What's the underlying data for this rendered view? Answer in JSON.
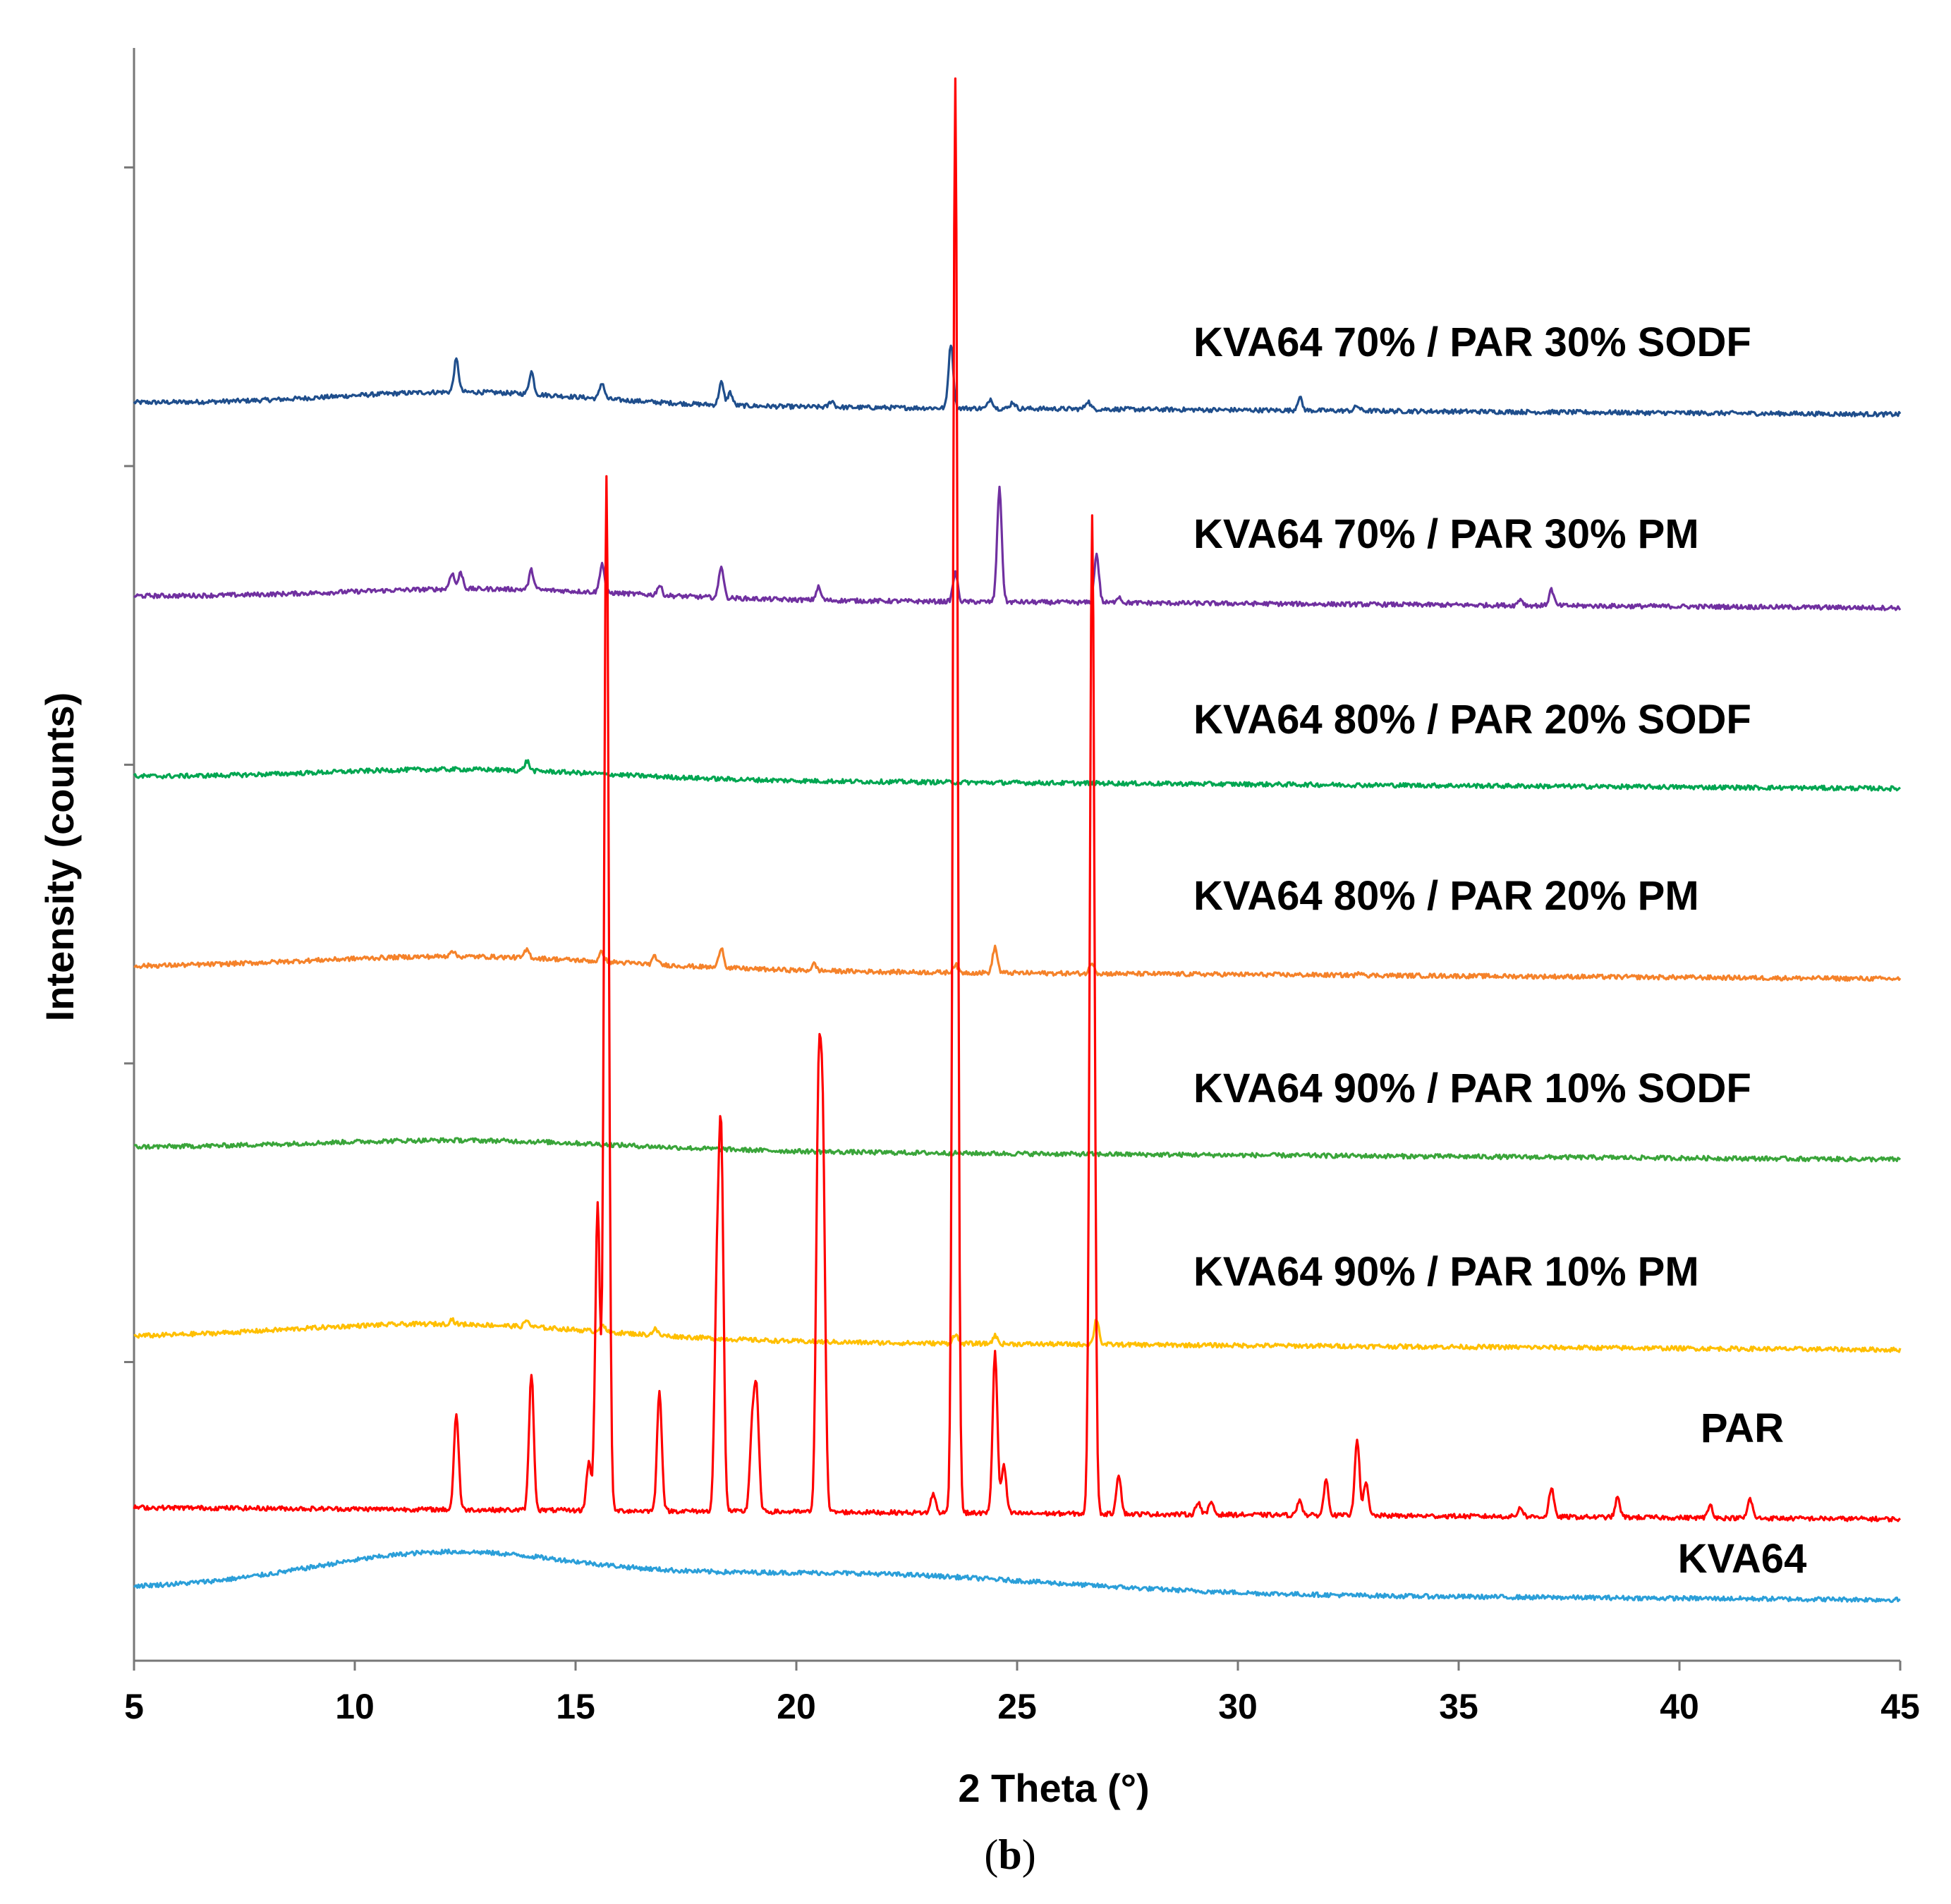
{
  "chart_data": {
    "type": "line",
    "title": "",
    "panel_label": "(b)",
    "panel_letter": "b",
    "xlabel": "2 Theta (°)",
    "ylabel": "Intensity (counts)",
    "xlim": [
      5,
      45
    ],
    "xticks": [
      5,
      10,
      15,
      20,
      25,
      30,
      35,
      40,
      45
    ],
    "y_tick_count": 5,
    "grid": false,
    "legend": "inline labels on right",
    "ylim": [
      0,
      1.0
    ],
    "series": [
      {
        "name": "KVA64 70% / PAR 30% SODF",
        "color": "#1f4e8c",
        "baseline": 0.78,
        "hump": {
          "center": 12.5,
          "width": 4.0,
          "height": 0.008
        },
        "peaks": [
          [
            12.3,
            0.02
          ],
          [
            14.0,
            0.014
          ],
          [
            15.6,
            0.01
          ],
          [
            18.3,
            0.014
          ],
          [
            18.5,
            0.008
          ],
          [
            20.8,
            0.004
          ],
          [
            23.5,
            0.04
          ],
          [
            24.4,
            0.006
          ],
          [
            24.9,
            0.004
          ],
          [
            26.6,
            0.005
          ],
          [
            31.4,
            0.008
          ],
          [
            32.7,
            0.003
          ]
        ]
      },
      {
        "name": "KVA64 70% / PAR 30% PM",
        "color": "#7030a0",
        "baseline": 0.66,
        "hump": {
          "center": 13.0,
          "width": 4.5,
          "height": 0.006
        },
        "peaks": [
          [
            12.2,
            0.01
          ],
          [
            12.4,
            0.01
          ],
          [
            14.0,
            0.012
          ],
          [
            15.6,
            0.018
          ],
          [
            16.9,
            0.006
          ],
          [
            18.3,
            0.02
          ],
          [
            20.5,
            0.008
          ],
          [
            23.6,
            0.018
          ],
          [
            24.6,
            0.07
          ],
          [
            26.8,
            0.03
          ],
          [
            27.3,
            0.004
          ],
          [
            37.1,
            0.01
          ],
          [
            36.4,
            0.004
          ]
        ]
      },
      {
        "name": "KVA64 80% / PAR 20% SODF",
        "color": "#00a651",
        "baseline": 0.548,
        "hump": {
          "center": 12.5,
          "width": 4.5,
          "height": 0.006
        },
        "peaks": [
          [
            13.9,
            0.006
          ]
        ]
      },
      {
        "name": "KVA64 80% / PAR 20% PM",
        "color": "#f5822a",
        "baseline": 0.43,
        "hump": {
          "center": 12.5,
          "width": 5.0,
          "height": 0.008
        },
        "peaks": [
          [
            12.2,
            0.004
          ],
          [
            13.9,
            0.005
          ],
          [
            15.6,
            0.006
          ],
          [
            16.8,
            0.005
          ],
          [
            18.3,
            0.013
          ],
          [
            20.4,
            0.004
          ],
          [
            23.6,
            0.005
          ],
          [
            24.5,
            0.016
          ],
          [
            26.7,
            0.007
          ],
          [
            32.8,
            0.002
          ]
        ]
      },
      {
        "name": "KVA64 90% / PAR 10% SODF",
        "color": "#3aa53a",
        "baseline": 0.318,
        "hump": {
          "center": 12.5,
          "width": 5.0,
          "height": 0.006
        },
        "peaks": []
      },
      {
        "name": "KVA64 90% / PAR 10% PM",
        "color": "#ffbf00",
        "baseline": 0.2,
        "hump": {
          "center": 12.0,
          "width": 5.0,
          "height": 0.01
        },
        "peaks": [
          [
            12.2,
            0.003
          ],
          [
            13.9,
            0.004
          ],
          [
            15.6,
            0.005
          ],
          [
            16.8,
            0.004
          ],
          [
            23.6,
            0.006
          ],
          [
            24.5,
            0.005
          ],
          [
            26.8,
            0.016
          ]
        ]
      },
      {
        "name": "PAR",
        "color": "#ff0000",
        "baseline": 0.095,
        "hump": {
          "center": 12.0,
          "width": 5.0,
          "height": 0.0
        },
        "peaks": [
          [
            12.3,
            0.06
          ],
          [
            14.0,
            0.085
          ],
          [
            15.3,
            0.03
          ],
          [
            15.5,
            0.19
          ],
          [
            15.7,
            0.64
          ],
          [
            16.9,
            0.075
          ],
          [
            18.2,
            0.13
          ],
          [
            18.3,
            0.22
          ],
          [
            19.0,
            0.05
          ],
          [
            19.1,
            0.07
          ],
          [
            20.5,
            0.24
          ],
          [
            20.6,
            0.22
          ],
          [
            23.1,
            0.012
          ],
          [
            23.6,
            0.89
          ],
          [
            24.5,
            0.1
          ],
          [
            24.7,
            0.03
          ],
          [
            26.7,
            0.62
          ],
          [
            27.3,
            0.025
          ],
          [
            29.1,
            0.008
          ],
          [
            29.4,
            0.008
          ],
          [
            31.4,
            0.01
          ],
          [
            32.0,
            0.022
          ],
          [
            32.7,
            0.048
          ],
          [
            32.9,
            0.02
          ],
          [
            36.4,
            0.006
          ],
          [
            37.1,
            0.018
          ],
          [
            38.6,
            0.012
          ],
          [
            40.7,
            0.008
          ],
          [
            41.6,
            0.012
          ]
        ]
      },
      {
        "name": "KVA64",
        "color": "#2b9fd9",
        "baseline": 0.045,
        "hump": {
          "center": 12.0,
          "width": 4.2,
          "height": 0.022
        },
        "hump2": {
          "center": 21.0,
          "width": 6.5,
          "height": 0.012
        },
        "peaks": []
      }
    ]
  }
}
